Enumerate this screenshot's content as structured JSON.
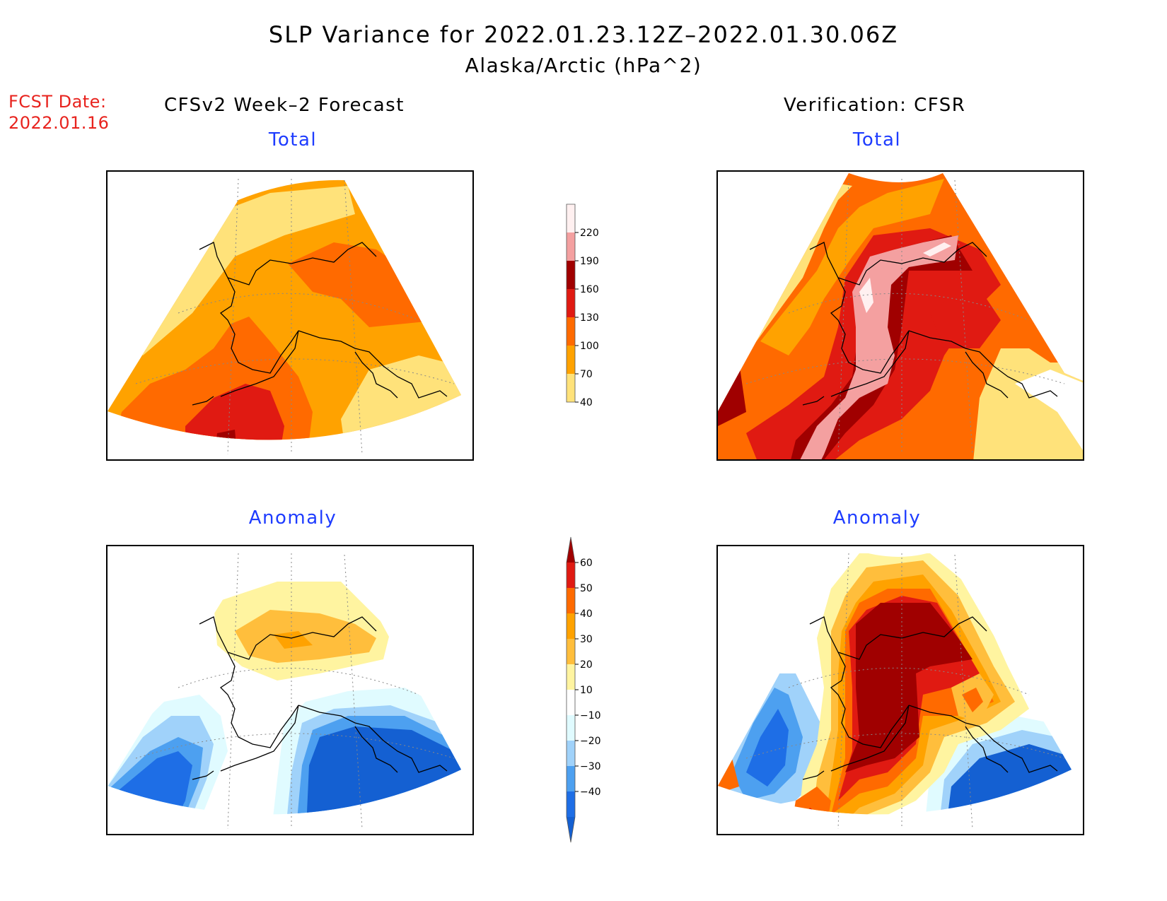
{
  "title": "SLP Variance for 2022.01.23.12Z–2022.01.30.06Z",
  "subtitle": "Alaska/Arctic (hPa^2)",
  "fcst_date": {
    "label": "FCST Date:",
    "value": "2022.01.16"
  },
  "columns": {
    "left": "CFSv2 Week–2 Forecast",
    "right": "Verification: CFSR"
  },
  "panels": {
    "fcst_total": "Total",
    "fcst_anom": "Anomaly",
    "ver_total": "Total",
    "ver_anom": "Anomaly"
  },
  "colorbar_total": {
    "levels": [
      "40",
      "70",
      "100",
      "130",
      "160",
      "190",
      "220"
    ],
    "colors": [
      "#fff0f0",
      "#f4a0a0",
      "#a00000",
      "#e01a12",
      "#ff6a00",
      "#ffa200",
      "#ffe27a"
    ]
  },
  "colorbar_anomaly": {
    "levels": [
      "60",
      "50",
      "40",
      "30",
      "20",
      "10",
      "−10",
      "−20",
      "−30",
      "−40"
    ],
    "colors": [
      "#a00000",
      "#e01a12",
      "#ff6a00",
      "#ffa200",
      "#ffbe3c",
      "#fff4a0",
      "#ffffff",
      "#e0fbff",
      "#a0d2fa",
      "#4da0f0",
      "#1e6ee6",
      "#1460d2"
    ]
  },
  "map_fill_colors": {
    "total": [
      "#ffe27a",
      "#ffa200",
      "#ff6a00",
      "#e01a12",
      "#a00000",
      "#f4a0a0",
      "#fff0f0"
    ],
    "anomaly_neg": [
      "#e0fbff",
      "#a0d2fa",
      "#4da0f0",
      "#1460d2"
    ],
    "anomaly_pos": [
      "#fff4a0",
      "#ffbe3c",
      "#ffa200",
      "#ff6a00",
      "#e01a12",
      "#a00000"
    ]
  }
}
